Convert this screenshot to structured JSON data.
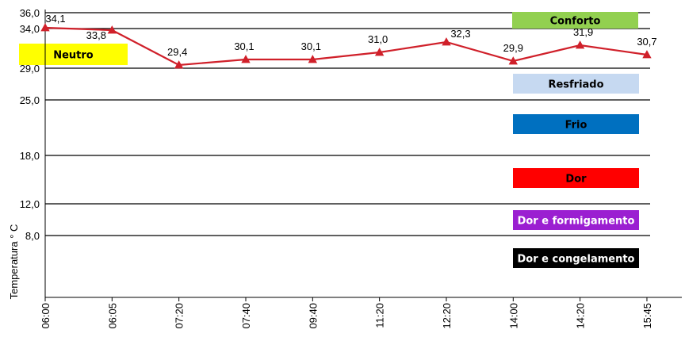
{
  "chart_data": {
    "type": "line",
    "ylabel": "Temperatura ° C",
    "xlabel": "",
    "categories": [
      "06:00",
      "06:05",
      "07:20",
      "07:40",
      "09:40",
      "11:20",
      "12:20",
      "14:00",
      "14:20",
      "15:45"
    ],
    "series": [
      {
        "values": [
          34.1,
          33.8,
          29.4,
          30.1,
          30.1,
          31.0,
          32.3,
          29.9,
          31.9,
          30.7
        ],
        "labels": [
          "34,1",
          "33,8",
          "29,4",
          "30,1",
          "30,1",
          "31,0",
          "32,3",
          "29,9",
          "31,9",
          "30,7"
        ],
        "color": "#d0202a"
      }
    ],
    "y_ticks": [
      {
        "value": 36.0,
        "label": "36,0"
      },
      {
        "value": 34.0,
        "label": "34,0"
      },
      {
        "value": 29.0,
        "label": "29,0"
      },
      {
        "value": 25.0,
        "label": "25,0"
      },
      {
        "value": 18.0,
        "label": "18,0"
      },
      {
        "value": 12.0,
        "label": "12,0"
      },
      {
        "value": 8.0,
        "label": "8,0"
      }
    ],
    "grid": true,
    "zones": [
      {
        "label": "Conforto",
        "color": "#92d050",
        "text_color": "#000000"
      },
      {
        "label": "Neutro",
        "color": "#ffff00",
        "text_color": "#000000"
      },
      {
        "label": "Resfriado",
        "color": "#c6d9f1",
        "text_color": "#000000"
      },
      {
        "label": "Frio",
        "color": "#0070c0",
        "text_color": "#000000"
      },
      {
        "label": "Dor",
        "color": "#ff0000",
        "text_color": "#000000"
      },
      {
        "label": "Dor e formigamento",
        "color": "#9b1fd1",
        "text_color": "#ffffff"
      },
      {
        "label": "Dor e congelamento",
        "color": "#000000",
        "text_color": "#ffffff"
      }
    ]
  }
}
